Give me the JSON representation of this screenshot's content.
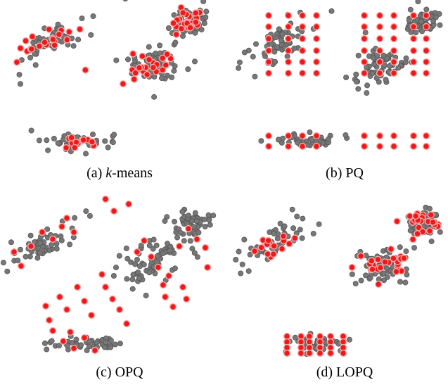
{
  "colors": {
    "data_point": "#777777",
    "data_point_edge": "#555555",
    "centroid": "#f01818",
    "centroid_edge": "#ffaaaa"
  },
  "panels": [
    {
      "id": "a",
      "caption_prefix": "(a) ",
      "caption_italic": "k",
      "caption_suffix": "-means"
    },
    {
      "id": "b",
      "caption_prefix": "(b) PQ",
      "caption_italic": "",
      "caption_suffix": ""
    },
    {
      "id": "c",
      "caption_prefix": "(c) OPQ",
      "caption_italic": "",
      "caption_suffix": ""
    },
    {
      "id": "d",
      "caption_prefix": "(d) LOPQ",
      "caption_italic": "",
      "caption_suffix": ""
    }
  ]
}
